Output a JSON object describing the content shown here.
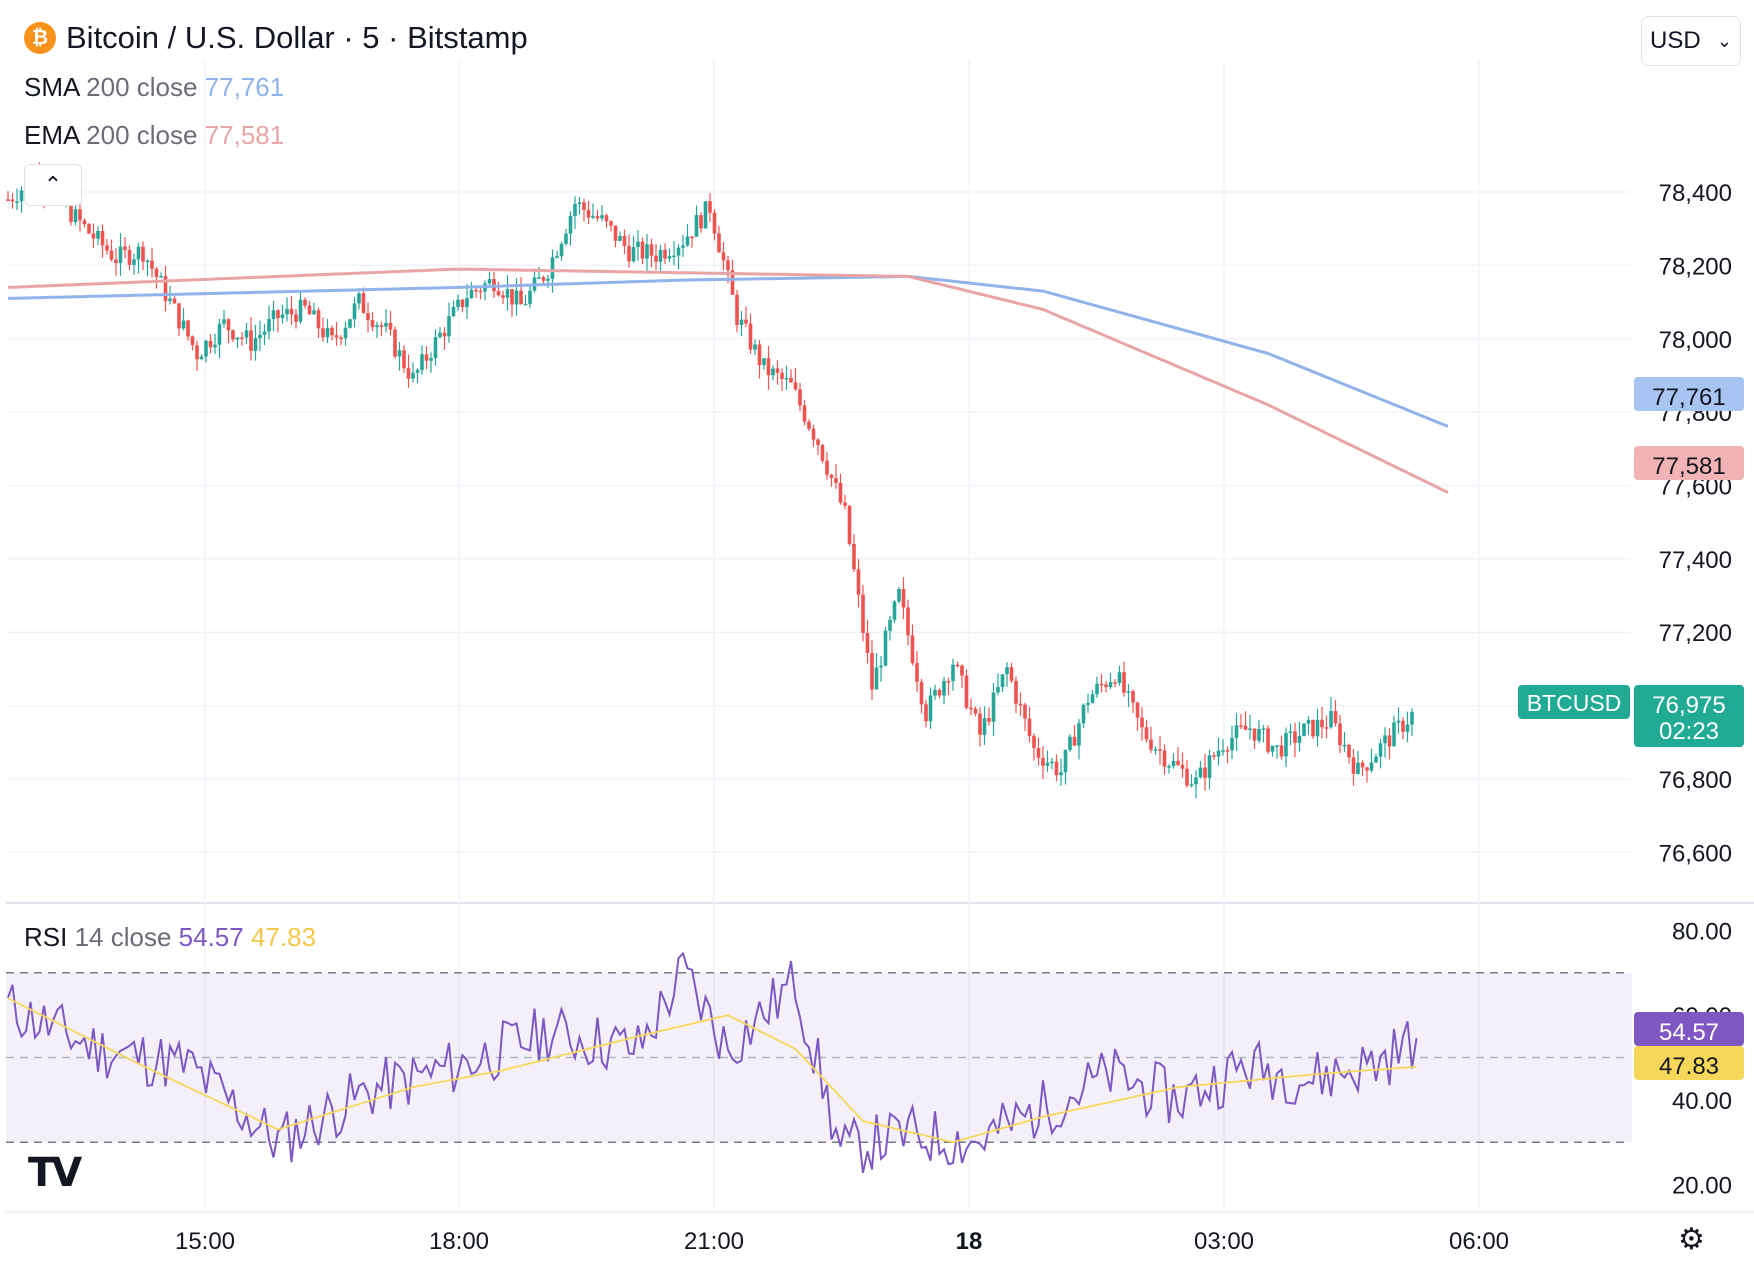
{
  "header": {
    "symbol_title": "Bitcoin / U.S. Dollar · 5 · Bitstamp",
    "icon": "bitcoin-icon",
    "currency": "USD"
  },
  "indicators": {
    "sma": {
      "name": "SMA",
      "params": "200 close",
      "value": "77,761",
      "color": "#8fb3ea"
    },
    "ema": {
      "name": "EMA",
      "params": "200 close",
      "value": "77,581",
      "color": "#e9a4a6"
    },
    "rsi": {
      "name": "RSI",
      "params": "14 close",
      "value": "54.57",
      "ma_value": "47.83",
      "color": "#7e57c2",
      "ma_color": "#f7d75a"
    }
  },
  "price_labels": {
    "symbol_tag": "BTCUSD",
    "last_price": "76,975",
    "countdown": "02:23"
  },
  "chart_data": {
    "type": "candlestick",
    "price_axis": {
      "ticks": [
        76600,
        76800,
        77000,
        77200,
        77400,
        77600,
        77800,
        78000,
        78200,
        78400
      ],
      "range": [
        76470,
        78760
      ]
    },
    "rsi_axis": {
      "ticks": [
        20,
        40,
        60,
        80
      ],
      "range": [
        14,
        86
      ],
      "bands": [
        30,
        70
      ],
      "midline": 50
    },
    "time_axis": {
      "labels": [
        "15:00",
        "18:00",
        "21:00",
        "18",
        "03:00",
        "06:00"
      ]
    },
    "ohlc_stepped_closes": [
      [
        0,
        78380
      ],
      [
        6,
        78440
      ],
      [
        12,
        78370
      ],
      [
        18,
        78290
      ],
      [
        24,
        78220
      ],
      [
        30,
        78240
      ],
      [
        36,
        78100
      ],
      [
        42,
        77960
      ],
      [
        48,
        78040
      ],
      [
        54,
        77990
      ],
      [
        60,
        78060
      ],
      [
        66,
        78080
      ],
      [
        72,
        77990
      ],
      [
        78,
        78100
      ],
      [
        84,
        78020
      ],
      [
        90,
        77890
      ],
      [
        96,
        78010
      ],
      [
        102,
        78120
      ],
      [
        108,
        78160
      ],
      [
        114,
        78090
      ],
      [
        120,
        78190
      ],
      [
        126,
        78370
      ],
      [
        132,
        78320
      ],
      [
        138,
        78240
      ],
      [
        144,
        78230
      ],
      [
        150,
        78270
      ],
      [
        156,
        78360
      ],
      [
        162,
        78060
      ],
      [
        168,
        77920
      ],
      [
        174,
        77870
      ],
      [
        180,
        77720
      ],
      [
        186,
        77520
      ],
      [
        192,
        77050
      ],
      [
        198,
        77300
      ],
      [
        204,
        76980
      ],
      [
        210,
        77120
      ],
      [
        216,
        76920
      ],
      [
        222,
        77100
      ],
      [
        228,
        76880
      ],
      [
        234,
        76820
      ],
      [
        240,
        77020
      ],
      [
        246,
        77090
      ],
      [
        252,
        76930
      ],
      [
        258,
        76850
      ],
      [
        264,
        76790
      ],
      [
        270,
        76900
      ],
      [
        276,
        76940
      ],
      [
        282,
        76880
      ],
      [
        288,
        76930
      ],
      [
        294,
        76960
      ],
      [
        300,
        76820
      ],
      [
        306,
        76900
      ],
      [
        312,
        76975
      ]
    ],
    "sma200": [
      [
        0,
        78110
      ],
      [
        100,
        78140
      ],
      [
        150,
        78160
      ],
      [
        200,
        78170
      ],
      [
        230,
        78130
      ],
      [
        280,
        77960
      ],
      [
        320,
        77761
      ]
    ],
    "ema200": [
      [
        0,
        78140
      ],
      [
        100,
        78190
      ],
      [
        150,
        78180
      ],
      [
        200,
        78170
      ],
      [
        230,
        78080
      ],
      [
        280,
        77820
      ],
      [
        320,
        77581
      ]
    ],
    "rsi": [
      [
        0,
        62
      ],
      [
        20,
        52
      ],
      [
        40,
        48
      ],
      [
        60,
        30
      ],
      [
        80,
        42
      ],
      [
        100,
        48
      ],
      [
        120,
        56
      ],
      [
        140,
        52
      ],
      [
        150,
        70
      ],
      [
        160,
        52
      ],
      [
        175,
        68
      ],
      [
        185,
        28
      ],
      [
        200,
        32
      ],
      [
        215,
        30
      ],
      [
        230,
        38
      ],
      [
        245,
        46
      ],
      [
        260,
        40
      ],
      [
        275,
        48
      ],
      [
        290,
        45
      ],
      [
        305,
        49
      ],
      [
        313,
        54.57
      ]
    ],
    "rsi_ma": [
      [
        0,
        64
      ],
      [
        30,
        48
      ],
      [
        60,
        33
      ],
      [
        90,
        43
      ],
      [
        110,
        47
      ],
      [
        140,
        55
      ],
      [
        160,
        60
      ],
      [
        175,
        52
      ],
      [
        190,
        35
      ],
      [
        210,
        30
      ],
      [
        230,
        36
      ],
      [
        260,
        43
      ],
      [
        290,
        46
      ],
      [
        313,
        47.83
      ]
    ]
  }
}
